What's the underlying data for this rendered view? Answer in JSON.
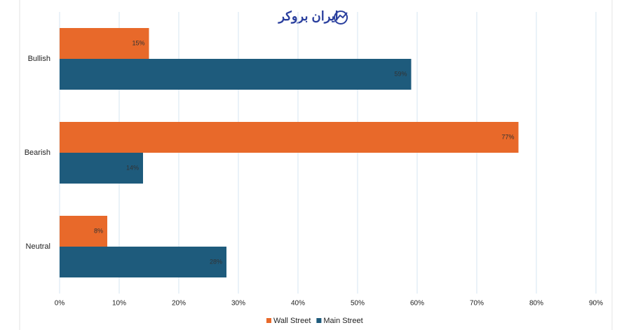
{
  "chart_data": {
    "type": "hbar",
    "logo_text": "ایران بروکر",
    "categories": [
      "Bullish",
      "Bearish",
      "Neutral"
    ],
    "series": [
      {
        "name": "Wall Street",
        "color": "#e8692a",
        "values": [
          15,
          77,
          8
        ],
        "value_labels": [
          "15%",
          "77%",
          "8%"
        ]
      },
      {
        "name": "Main Street",
        "color": "#1e5b7c",
        "values": [
          59,
          14,
          28
        ],
        "value_labels": [
          "59%",
          "14%",
          "28%"
        ]
      }
    ],
    "xlim": [
      0,
      90
    ],
    "xticks": [
      {
        "value": 0,
        "label": "0%"
      },
      {
        "value": 10,
        "label": "10%"
      },
      {
        "value": 20,
        "label": "20%"
      },
      {
        "value": 30,
        "label": "30%"
      },
      {
        "value": 40,
        "label": "40%"
      },
      {
        "value": 50,
        "label": "50%"
      },
      {
        "value": 60,
        "label": "60%"
      },
      {
        "value": 70,
        "label": "70%"
      },
      {
        "value": 80,
        "label": "80%"
      },
      {
        "value": 90,
        "label": "90%"
      }
    ],
    "grid": true,
    "legend": "bottom"
  }
}
